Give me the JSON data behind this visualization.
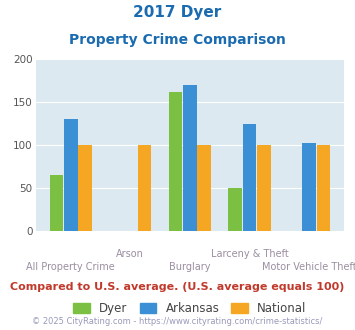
{
  "title_line1": "2017 Dyer",
  "title_line2": "Property Crime Comparison",
  "categories": [
    "All Property Crime",
    "Arson",
    "Burglary",
    "Larceny & Theft",
    "Motor Vehicle Theft"
  ],
  "dyer": [
    65,
    0,
    162,
    50,
    0
  ],
  "arkansas": [
    130,
    0,
    170,
    125,
    102
  ],
  "national": [
    100,
    100,
    100,
    100,
    100
  ],
  "dyer_color": "#7bc043",
  "arkansas_color": "#3b8fd4",
  "national_color": "#f5a623",
  "bg_color": "#dce9f0",
  "title_color": "#1a6bb0",
  "xlabel_color": "#9b8ea0",
  "legend_label_color": "#444444",
  "footnote_color": "#c0392b",
  "copyright_color": "#9999bb",
  "ylim": [
    0,
    200
  ],
  "yticks": [
    0,
    50,
    100,
    150,
    200
  ],
  "footnote": "Compared to U.S. average. (U.S. average equals 100)",
  "copyright": "© 2025 CityRating.com - https://www.cityrating.com/crime-statistics/"
}
